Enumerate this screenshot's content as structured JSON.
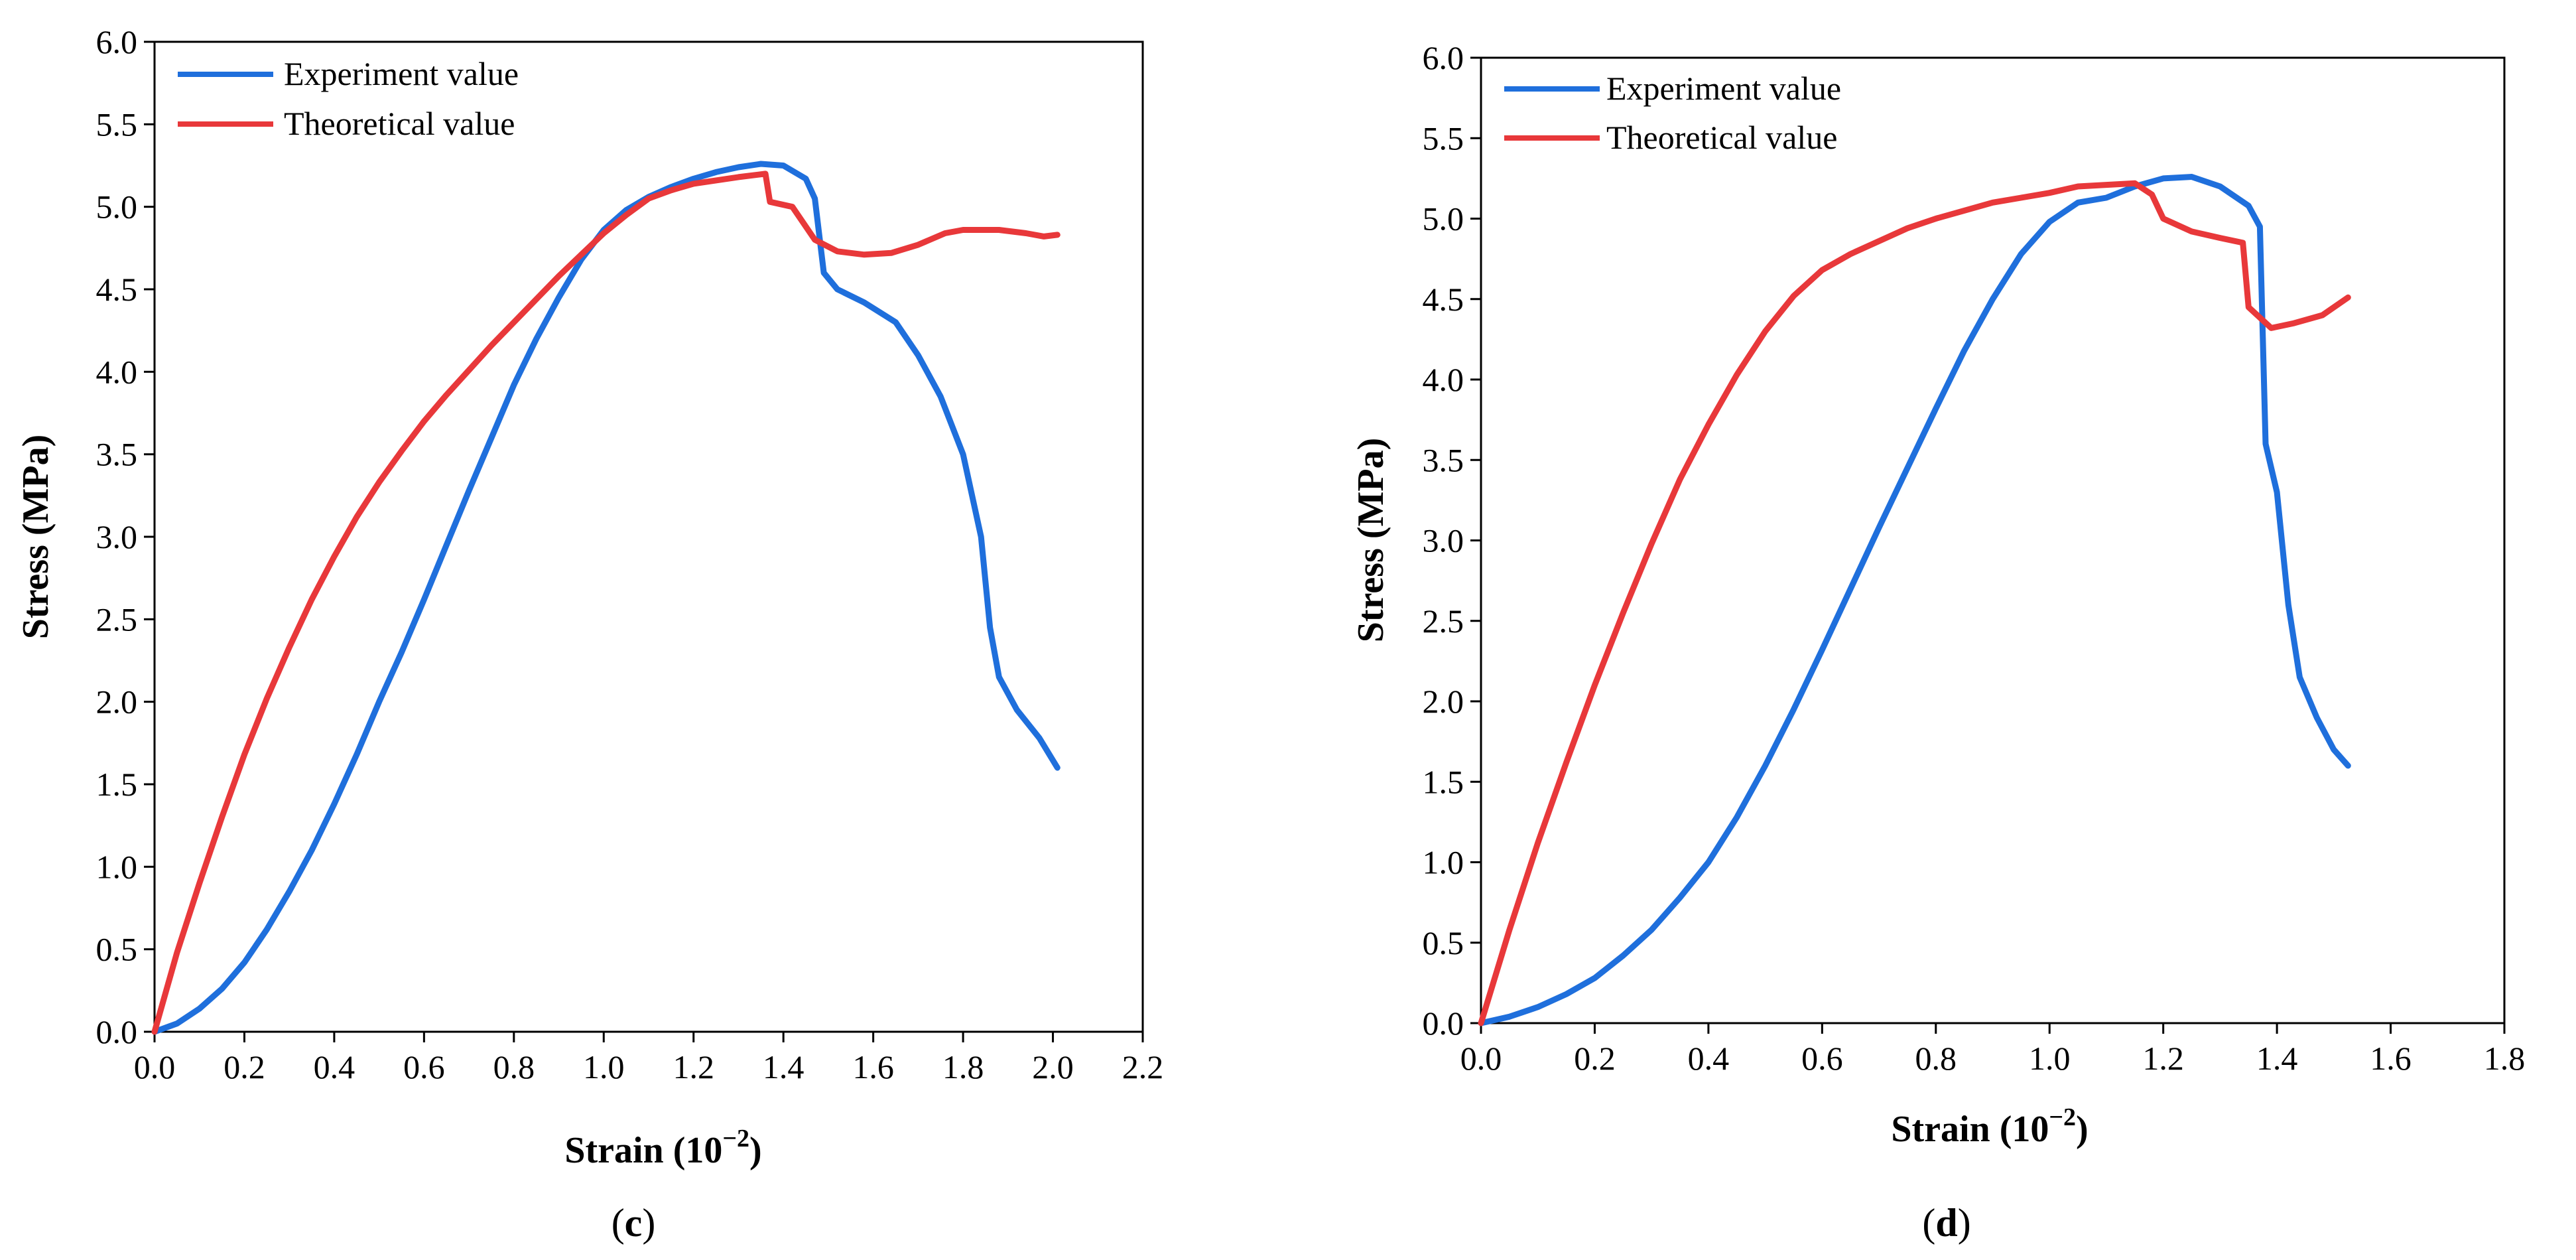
{
  "chart_data": [
    {
      "type": "line",
      "panel_label": "c",
      "xlabel": "Strain (10",
      "xlabel_exp": "−2",
      "xlabel_close": ")",
      "ylabel": "Stress (MPa)",
      "xlim": [
        0,
        2.2
      ],
      "ylim": [
        0,
        6.0
      ],
      "x_ticks": [
        "0.0",
        "0.2",
        "0.4",
        "0.6",
        "0.8",
        "1.0",
        "1.2",
        "1.4",
        "1.6",
        "1.8",
        "2.0",
        "2.2"
      ],
      "y_ticks": [
        "0.0",
        "0.5",
        "1.0",
        "1.5",
        "2.0",
        "2.5",
        "3.0",
        "3.5",
        "4.0",
        "4.5",
        "5.0",
        "5.5",
        "6.0"
      ],
      "grid": false,
      "legend_position": "top-left",
      "series": [
        {
          "name": "Experiment value",
          "color": "#1f6fdc",
          "points": [
            [
              0,
              0
            ],
            [
              0.05,
              0.05
            ],
            [
              0.1,
              0.14
            ],
            [
              0.15,
              0.26
            ],
            [
              0.2,
              0.42
            ],
            [
              0.25,
              0.62
            ],
            [
              0.3,
              0.85
            ],
            [
              0.35,
              1.1
            ],
            [
              0.4,
              1.38
            ],
            [
              0.45,
              1.68
            ],
            [
              0.5,
              2.0
            ],
            [
              0.55,
              2.3
            ],
            [
              0.6,
              2.62
            ],
            [
              0.65,
              2.95
            ],
            [
              0.7,
              3.28
            ],
            [
              0.75,
              3.6
            ],
            [
              0.8,
              3.92
            ],
            [
              0.85,
              4.2
            ],
            [
              0.9,
              4.45
            ],
            [
              0.95,
              4.68
            ],
            [
              1.0,
              4.86
            ],
            [
              1.05,
              4.98
            ],
            [
              1.1,
              5.06
            ],
            [
              1.15,
              5.12
            ],
            [
              1.2,
              5.17
            ],
            [
              1.25,
              5.21
            ],
            [
              1.3,
              5.24
            ],
            [
              1.35,
              5.26
            ],
            [
              1.4,
              5.25
            ],
            [
              1.45,
              5.17
            ],
            [
              1.47,
              5.05
            ],
            [
              1.49,
              4.6
            ],
            [
              1.52,
              4.5
            ],
            [
              1.58,
              4.42
            ],
            [
              1.65,
              4.3
            ],
            [
              1.7,
              4.1
            ],
            [
              1.75,
              3.85
            ],
            [
              1.8,
              3.5
            ],
            [
              1.84,
              3.0
            ],
            [
              1.86,
              2.45
            ],
            [
              1.88,
              2.15
            ],
            [
              1.92,
              1.95
            ],
            [
              1.97,
              1.78
            ],
            [
              2.01,
              1.6
            ]
          ]
        },
        {
          "name": "Theoretical value",
          "color": "#e8383a",
          "points": [
            [
              0,
              0
            ],
            [
              0.05,
              0.48
            ],
            [
              0.1,
              0.9
            ],
            [
              0.15,
              1.3
            ],
            [
              0.2,
              1.68
            ],
            [
              0.25,
              2.02
            ],
            [
              0.3,
              2.33
            ],
            [
              0.35,
              2.62
            ],
            [
              0.4,
              2.88
            ],
            [
              0.45,
              3.12
            ],
            [
              0.5,
              3.33
            ],
            [
              0.55,
              3.52
            ],
            [
              0.6,
              3.7
            ],
            [
              0.65,
              3.86
            ],
            [
              0.7,
              4.01
            ],
            [
              0.75,
              4.16
            ],
            [
              0.8,
              4.3
            ],
            [
              0.85,
              4.44
            ],
            [
              0.9,
              4.58
            ],
            [
              0.95,
              4.71
            ],
            [
              1.0,
              4.84
            ],
            [
              1.05,
              4.95
            ],
            [
              1.1,
              5.05
            ],
            [
              1.15,
              5.1
            ],
            [
              1.2,
              5.14
            ],
            [
              1.25,
              5.16
            ],
            [
              1.3,
              5.18
            ],
            [
              1.36,
              5.2
            ],
            [
              1.37,
              5.03
            ],
            [
              1.42,
              5.0
            ],
            [
              1.47,
              4.8
            ],
            [
              1.52,
              4.73
            ],
            [
              1.58,
              4.71
            ],
            [
              1.64,
              4.72
            ],
            [
              1.7,
              4.77
            ],
            [
              1.76,
              4.84
            ],
            [
              1.8,
              4.86
            ],
            [
              1.88,
              4.86
            ],
            [
              1.94,
              4.84
            ],
            [
              1.98,
              4.82
            ],
            [
              2.01,
              4.83
            ]
          ]
        }
      ]
    },
    {
      "type": "line",
      "panel_label": "d",
      "xlabel": "Strain (10",
      "xlabel_exp": "−2",
      "xlabel_close": ")",
      "ylabel": "Stress (MPa)",
      "xlim": [
        0,
        1.8
      ],
      "ylim": [
        0,
        6.0
      ],
      "x_ticks": [
        "0.0",
        "0.2",
        "0.4",
        "0.6",
        "0.8",
        "1.0",
        "1.2",
        "1.4",
        "1.6",
        "1.8"
      ],
      "y_ticks": [
        "0.0",
        "0.5",
        "1.0",
        "1.5",
        "2.0",
        "2.5",
        "3.0",
        "3.5",
        "4.0",
        "4.5",
        "5.0",
        "5.5",
        "6.0"
      ],
      "grid": false,
      "legend_position": "top-left",
      "series": [
        {
          "name": "Experiment value",
          "color": "#1f6fdc",
          "points": [
            [
              0,
              0
            ],
            [
              0.05,
              0.04
            ],
            [
              0.1,
              0.1
            ],
            [
              0.15,
              0.18
            ],
            [
              0.2,
              0.28
            ],
            [
              0.25,
              0.42
            ],
            [
              0.3,
              0.58
            ],
            [
              0.35,
              0.78
            ],
            [
              0.4,
              1.0
            ],
            [
              0.45,
              1.28
            ],
            [
              0.5,
              1.6
            ],
            [
              0.55,
              1.95
            ],
            [
              0.6,
              2.32
            ],
            [
              0.65,
              2.7
            ],
            [
              0.7,
              3.08
            ],
            [
              0.75,
              3.45
            ],
            [
              0.8,
              3.82
            ],
            [
              0.85,
              4.18
            ],
            [
              0.9,
              4.5
            ],
            [
              0.95,
              4.78
            ],
            [
              1.0,
              4.98
            ],
            [
              1.05,
              5.1
            ],
            [
              1.1,
              5.13
            ],
            [
              1.15,
              5.2
            ],
            [
              1.2,
              5.25
            ],
            [
              1.25,
              5.26
            ],
            [
              1.3,
              5.2
            ],
            [
              1.35,
              5.08
            ],
            [
              1.37,
              4.95
            ],
            [
              1.38,
              3.6
            ],
            [
              1.4,
              3.3
            ],
            [
              1.42,
              2.6
            ],
            [
              1.44,
              2.15
            ],
            [
              1.47,
              1.9
            ],
            [
              1.5,
              1.7
            ],
            [
              1.525,
              1.6
            ]
          ]
        },
        {
          "name": "Theoretical value",
          "color": "#e8383a",
          "points": [
            [
              0,
              0
            ],
            [
              0.05,
              0.58
            ],
            [
              0.1,
              1.12
            ],
            [
              0.15,
              1.62
            ],
            [
              0.2,
              2.1
            ],
            [
              0.25,
              2.55
            ],
            [
              0.3,
              2.98
            ],
            [
              0.35,
              3.38
            ],
            [
              0.4,
              3.72
            ],
            [
              0.45,
              4.03
            ],
            [
              0.5,
              4.3
            ],
            [
              0.55,
              4.52
            ],
            [
              0.6,
              4.68
            ],
            [
              0.65,
              4.78
            ],
            [
              0.7,
              4.86
            ],
            [
              0.75,
              4.94
            ],
            [
              0.8,
              5.0
            ],
            [
              0.85,
              5.05
            ],
            [
              0.9,
              5.1
            ],
            [
              0.95,
              5.13
            ],
            [
              1.0,
              5.16
            ],
            [
              1.05,
              5.2
            ],
            [
              1.1,
              5.21
            ],
            [
              1.15,
              5.22
            ],
            [
              1.18,
              5.15
            ],
            [
              1.2,
              5.0
            ],
            [
              1.25,
              4.92
            ],
            [
              1.3,
              4.88
            ],
            [
              1.34,
              4.85
            ],
            [
              1.35,
              4.45
            ],
            [
              1.39,
              4.32
            ],
            [
              1.43,
              4.35
            ],
            [
              1.48,
              4.4
            ],
            [
              1.525,
              4.51
            ]
          ]
        }
      ]
    }
  ]
}
